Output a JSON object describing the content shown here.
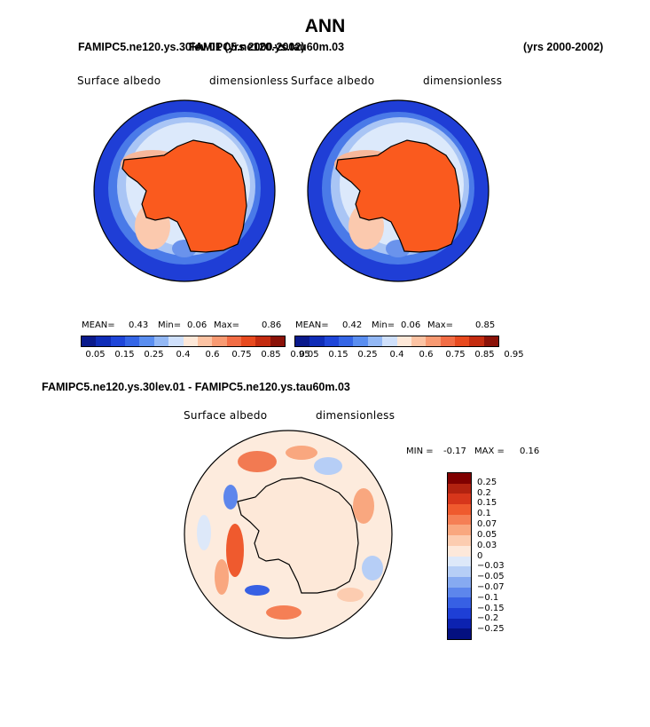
{
  "title": "ANN",
  "header": {
    "left_title": "FAMIPC5.ne120.ys.30lev.01 (yrs 2000-2002)",
    "right_title": "FAMIPC5.ne120.ys.tau60m.03",
    "right_years": "(yrs 2000-2002)"
  },
  "panels": [
    {
      "variable": "Surface albedo",
      "units": "dimensionless",
      "mean_label": "MEAN=",
      "mean": "0.43",
      "min_label": "Min=",
      "min": "0.06",
      "max_label": "Max=",
      "max": "0.86"
    },
    {
      "variable": "Surface albedo",
      "units": "dimensionless",
      "mean_label": "MEAN=",
      "mean": "0.42",
      "min_label": "Min=",
      "min": "0.06",
      "max_label": "Max=",
      "max": "0.85"
    }
  ],
  "top_colorbar": {
    "colors": [
      "#0a1a8c",
      "#0f2db8",
      "#1f46d9",
      "#3566e6",
      "#5a8ef0",
      "#93b8f5",
      "#cfe0fb",
      "#fde8d8",
      "#fcc3a3",
      "#f89a72",
      "#f26d45",
      "#e84a1f",
      "#c42c10",
      "#8b1208"
    ],
    "tick_labels": [
      "0.05",
      "0.15",
      "0.25",
      "0.4",
      "0.6",
      "0.75",
      "0.85",
      "0.95"
    ]
  },
  "diff": {
    "title": "FAMIPC5.ne120.ys.30lev.01 - FAMIPC5.ne120.ys.tau60m.03",
    "variable": "Surface albedo",
    "units": "dimensionless",
    "min_label": "MIN =",
    "min": "-0.17",
    "max_label": "MAX =",
    "max": "0.16"
  },
  "diff_colorbar": {
    "colors": [
      "#800000",
      "#b22210",
      "#d7361b",
      "#ef5a2e",
      "#f57f55",
      "#f9a77f",
      "#fcccb0",
      "#fde8da",
      "#dde8f9",
      "#b6cef6",
      "#86aaf1",
      "#5d86ec",
      "#3760e4",
      "#1e3fd6",
      "#0c22b0",
      "#041080"
    ],
    "labels": [
      "0.25",
      "0.2",
      "0.15",
      "0.1",
      "0.07",
      "0.05",
      "0.03",
      "0",
      "−0.03",
      "−0.05",
      "−0.07",
      "−0.1",
      "−0.15",
      "−0.2",
      "−0.25"
    ]
  }
}
